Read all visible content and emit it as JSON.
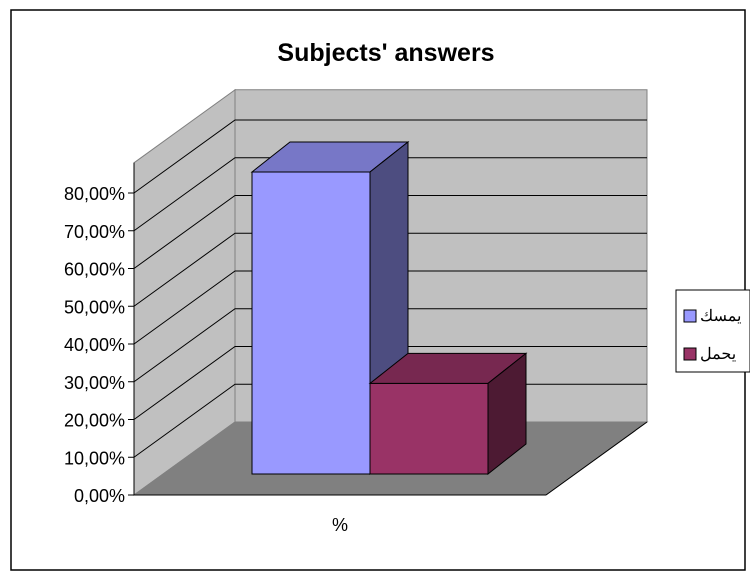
{
  "chart_data": {
    "type": "bar",
    "title": "Subjects' answers",
    "categories": [
      "%"
    ],
    "series": [
      {
        "name": "يمسك",
        "values": [
          0.8
        ],
        "color": "#9999FF"
      },
      {
        "name": "يحمل",
        "values": [
          0.24
        ],
        "color": "#993366"
      }
    ],
    "ylim": [
      0,
      0.8
    ],
    "yticks": [
      "0,00%",
      "10,00%",
      "20,00%",
      "30,00%",
      "40,00%",
      "50,00%",
      "60,00%",
      "70,00%",
      "80,00%"
    ],
    "grid": true,
    "legend": "right",
    "three_d": true,
    "colors": {
      "wall": "#C0C0C0",
      "floor": "#808080",
      "gridline": "#000000"
    }
  }
}
